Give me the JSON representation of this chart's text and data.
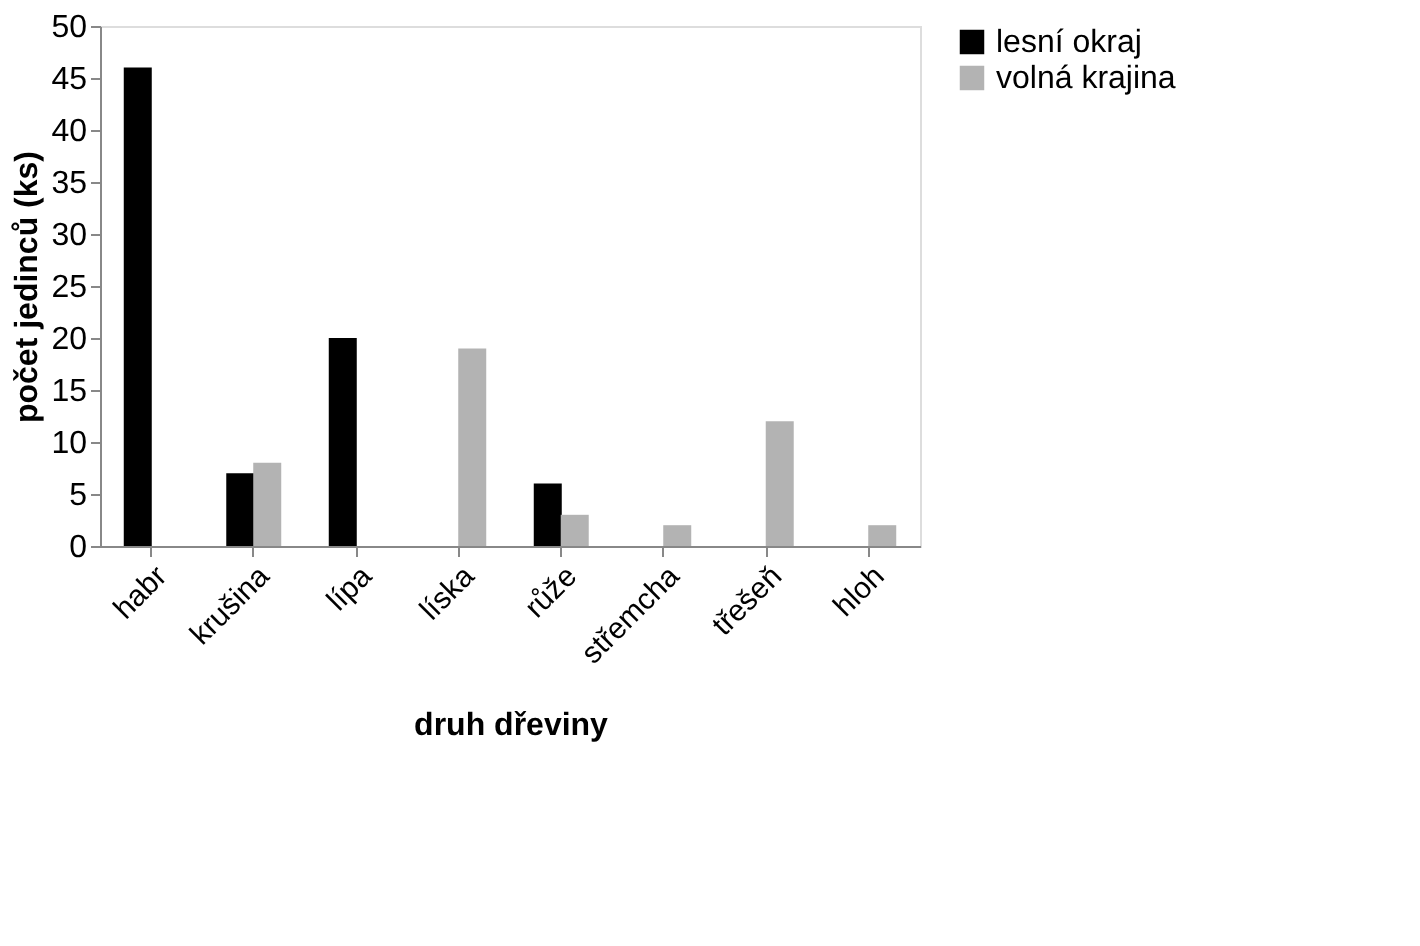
{
  "chart_data": {
    "type": "bar",
    "xlabel": "druh dřeviny",
    "ylabel": "počet jedinců (ks)",
    "categories": [
      "habr",
      "krušina",
      "lípa",
      "líska",
      "růže",
      "střemcha",
      "třešeň",
      "hloh"
    ],
    "series": [
      {
        "name": "lesní okraj",
        "color": "#000000",
        "values": [
          46,
          7,
          20,
          null,
          6,
          null,
          null,
          null
        ]
      },
      {
        "name": "volná krajina",
        "color": "#b3b3b3",
        "values": [
          null,
          8,
          null,
          19,
          3,
          2,
          12,
          2
        ]
      }
    ],
    "ylim": [
      0,
      50
    ],
    "yticks": [
      0,
      5,
      10,
      15,
      20,
      25,
      30,
      35,
      40,
      45,
      50
    ],
    "grid": false,
    "legend": "right"
  }
}
